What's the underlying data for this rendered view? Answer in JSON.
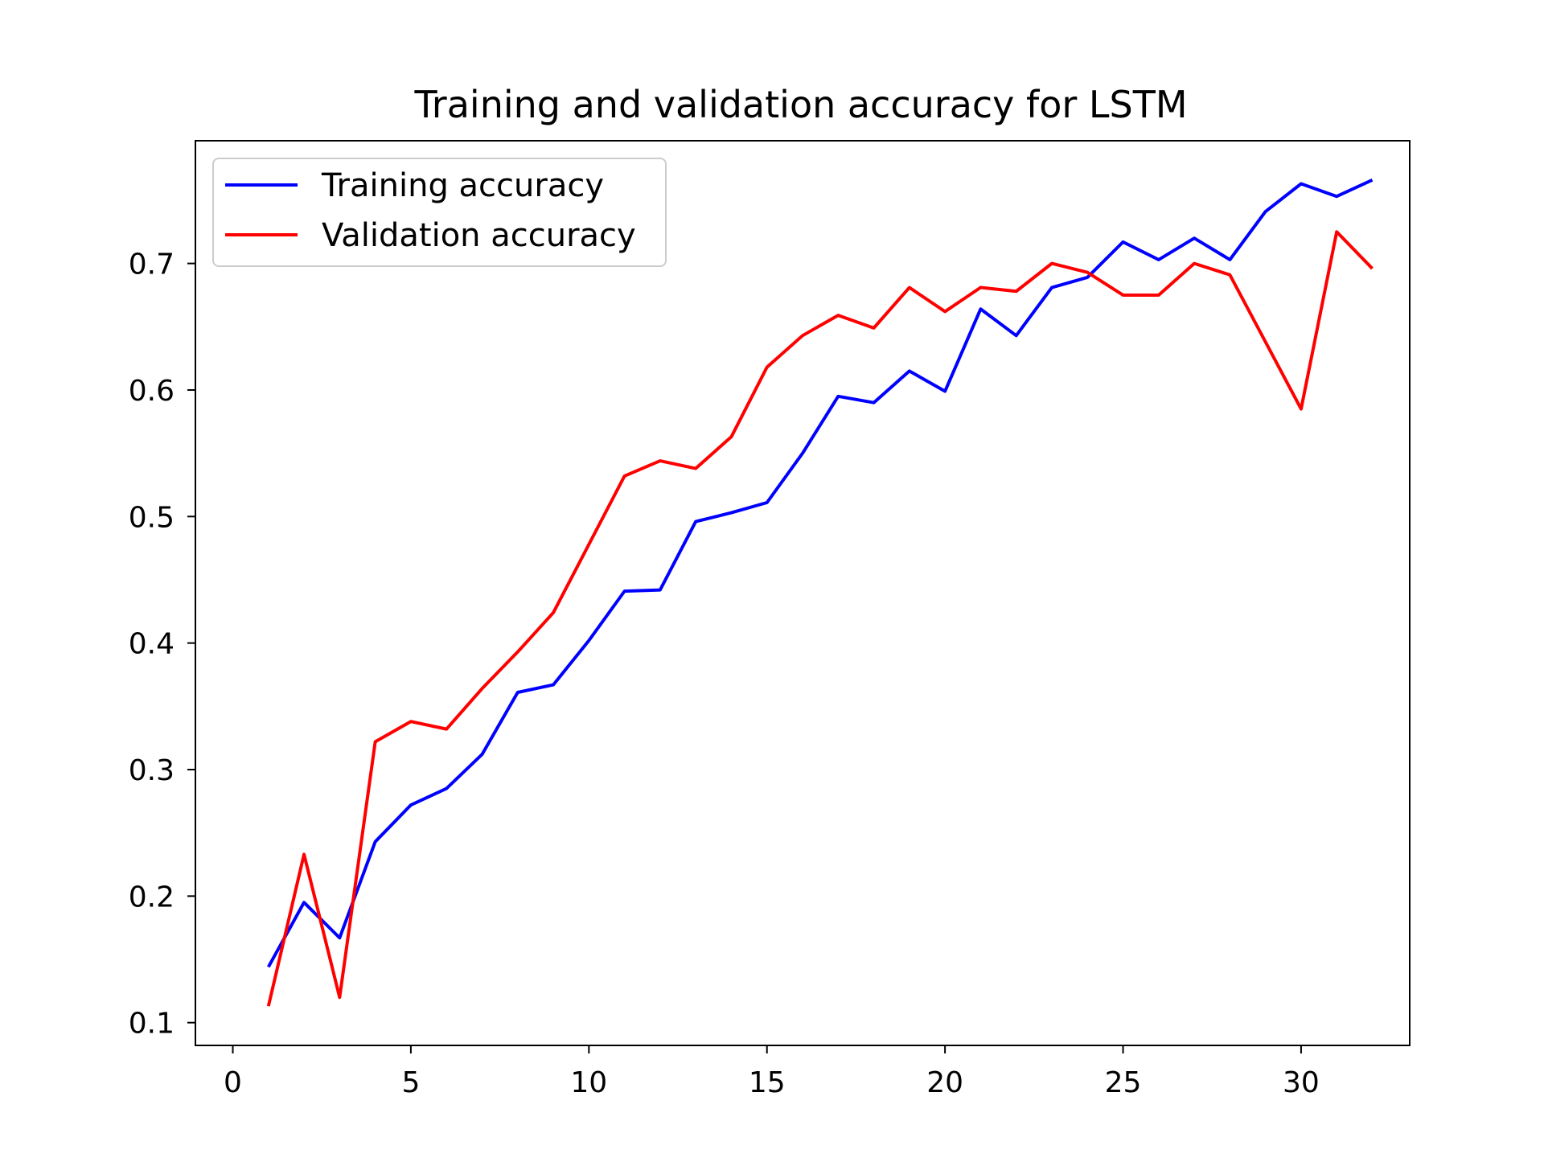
{
  "chart_data": {
    "type": "line",
    "title": "Training and validation accuracy for LSTM",
    "xlabel": "",
    "ylabel": "",
    "xlim": [
      -1.05,
      33.05
    ],
    "ylim": [
      0.082,
      0.797
    ],
    "x_ticks": [
      0,
      5,
      10,
      15,
      20,
      25,
      30
    ],
    "x_tick_labels": [
      "0",
      "5",
      "10",
      "15",
      "20",
      "25",
      "30"
    ],
    "y_ticks": [
      0.1,
      0.2,
      0.3,
      0.4,
      0.5,
      0.6,
      0.7
    ],
    "y_tick_labels": [
      "0.1",
      "0.2",
      "0.3",
      "0.4",
      "0.5",
      "0.6",
      "0.7"
    ],
    "grid": false,
    "legend_position": "top-left",
    "x": [
      1,
      2,
      3,
      4,
      5,
      6,
      7,
      8,
      9,
      10,
      11,
      12,
      13,
      14,
      15,
      16,
      17,
      18,
      19,
      20,
      21,
      22,
      23,
      24,
      25,
      26,
      27,
      28,
      29,
      30,
      31,
      32
    ],
    "series": [
      {
        "name": "Training accuracy",
        "color": "#0000ff",
        "values": [
          0.144,
          0.195,
          0.167,
          0.243,
          0.272,
          0.285,
          0.312,
          0.361,
          0.367,
          0.402,
          0.441,
          0.442,
          0.496,
          0.503,
          0.511,
          0.55,
          0.595,
          0.59,
          0.615,
          0.599,
          0.664,
          0.643,
          0.681,
          0.689,
          0.717,
          0.703,
          0.72,
          0.703,
          0.741,
          0.763,
          0.753,
          0.766
        ]
      },
      {
        "name": "Validation accuracy",
        "color": "#ff0000",
        "values": [
          0.113,
          0.233,
          0.12,
          0.322,
          0.338,
          0.332,
          0.364,
          0.393,
          0.424,
          0.478,
          0.532,
          0.544,
          0.538,
          0.563,
          0.618,
          0.643,
          0.659,
          0.649,
          0.681,
          0.662,
          0.681,
          0.678,
          0.7,
          0.693,
          0.675,
          0.675,
          0.7,
          0.691,
          0.638,
          0.585,
          0.725,
          0.696
        ]
      }
    ]
  }
}
